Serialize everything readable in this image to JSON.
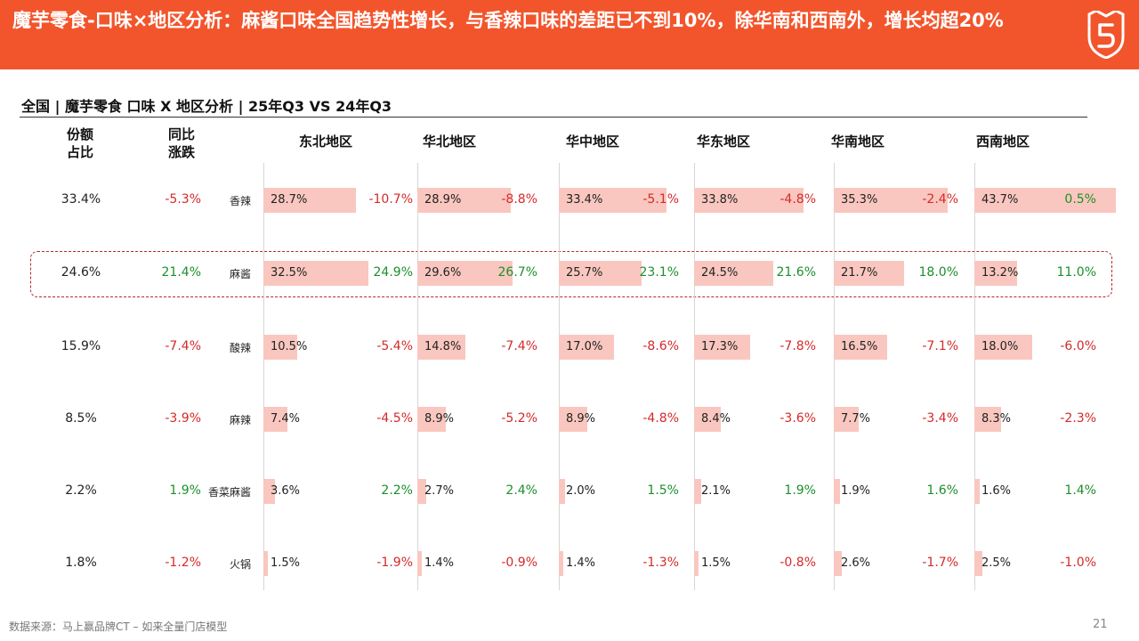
{
  "header": {
    "title": "魔芋零食-口味×地区分析：麻酱口味全国趋势性增长，与香辣口味的差距已不到10%，除华南和西南外，增长均超20%"
  },
  "subtitle": "全国 | 魔芋零食  口味 X 地区分析  |  25年Q3 VS 24年Q3",
  "columns": {
    "share_line1": "份额",
    "share_line2": "占比",
    "yoy_line1": "同比",
    "yoy_line2": "涨跌"
  },
  "footer": {
    "source": "数据来源：马上赢品牌CT – 如来全量门店模型",
    "page": "21"
  },
  "colors": {
    "header": "#f2552c",
    "bar": "#f9c7bf",
    "positive": "#1c8f2b",
    "negative": "#d42a2a"
  },
  "chart_data": {
    "type": "bar",
    "regions": [
      "东北地区",
      "华北地区",
      "华中地区",
      "华东地区",
      "华南地区",
      "西南地区"
    ],
    "flavors": [
      {
        "name": "香辣",
        "share": "33.4%",
        "yoy": "-5.3%",
        "values": [
          28.7,
          28.9,
          33.4,
          33.8,
          35.3,
          43.7
        ],
        "value_labels": [
          "28.7%",
          "28.9%",
          "33.4%",
          "33.8%",
          "35.3%",
          "43.7%"
        ],
        "changes": [
          "-10.7%",
          "-8.8%",
          "-5.1%",
          "-4.8%",
          "-2.4%",
          "0.5%"
        ]
      },
      {
        "name": "麻酱",
        "share": "24.6%",
        "yoy": "21.4%",
        "values": [
          32.5,
          29.6,
          25.7,
          24.5,
          21.7,
          13.2
        ],
        "value_labels": [
          "32.5%",
          "29.6%",
          "25.7%",
          "24.5%",
          "21.7%",
          "13.2%"
        ],
        "changes": [
          "24.9%",
          "26.7%",
          "23.1%",
          "21.6%",
          "18.0%",
          "11.0%"
        ]
      },
      {
        "name": "酸辣",
        "share": "15.9%",
        "yoy": "-7.4%",
        "values": [
          10.5,
          14.8,
          17.0,
          17.3,
          16.5,
          18.0
        ],
        "value_labels": [
          "10.5%",
          "14.8%",
          "17.0%",
          "17.3%",
          "16.5%",
          "18.0%"
        ],
        "changes": [
          "-5.4%",
          "-7.4%",
          "-8.6%",
          "-7.8%",
          "-7.1%",
          "-6.0%"
        ]
      },
      {
        "name": "麻辣",
        "share": "8.5%",
        "yoy": "-3.9%",
        "values": [
          7.4,
          8.9,
          8.9,
          8.4,
          7.7,
          8.3
        ],
        "value_labels": [
          "7.4%",
          "8.9%",
          "8.9%",
          "8.4%",
          "7.7%",
          "8.3%"
        ],
        "changes": [
          "-4.5%",
          "-5.2%",
          "-4.8%",
          "-3.6%",
          "-3.4%",
          "-2.3%"
        ]
      },
      {
        "name": "香菜麻酱",
        "share": "2.2%",
        "yoy": "1.9%",
        "values": [
          3.6,
          2.7,
          2.0,
          2.1,
          1.9,
          1.6
        ],
        "value_labels": [
          "3.6%",
          "2.7%",
          "2.0%",
          "2.1%",
          "1.9%",
          "1.6%"
        ],
        "changes": [
          "2.2%",
          "2.4%",
          "1.5%",
          "1.9%",
          "1.6%",
          "1.4%"
        ]
      },
      {
        "name": "火锅",
        "share": "1.8%",
        "yoy": "-1.2%",
        "values": [
          1.5,
          1.4,
          1.4,
          1.5,
          2.6,
          2.5
        ],
        "value_labels": [
          "1.5%",
          "1.4%",
          "1.4%",
          "1.5%",
          "2.6%",
          "2.5%"
        ],
        "changes": [
          "-1.9%",
          "-0.9%",
          "-1.3%",
          "-0.8%",
          "-1.7%",
          "-1.0%"
        ]
      }
    ]
  }
}
